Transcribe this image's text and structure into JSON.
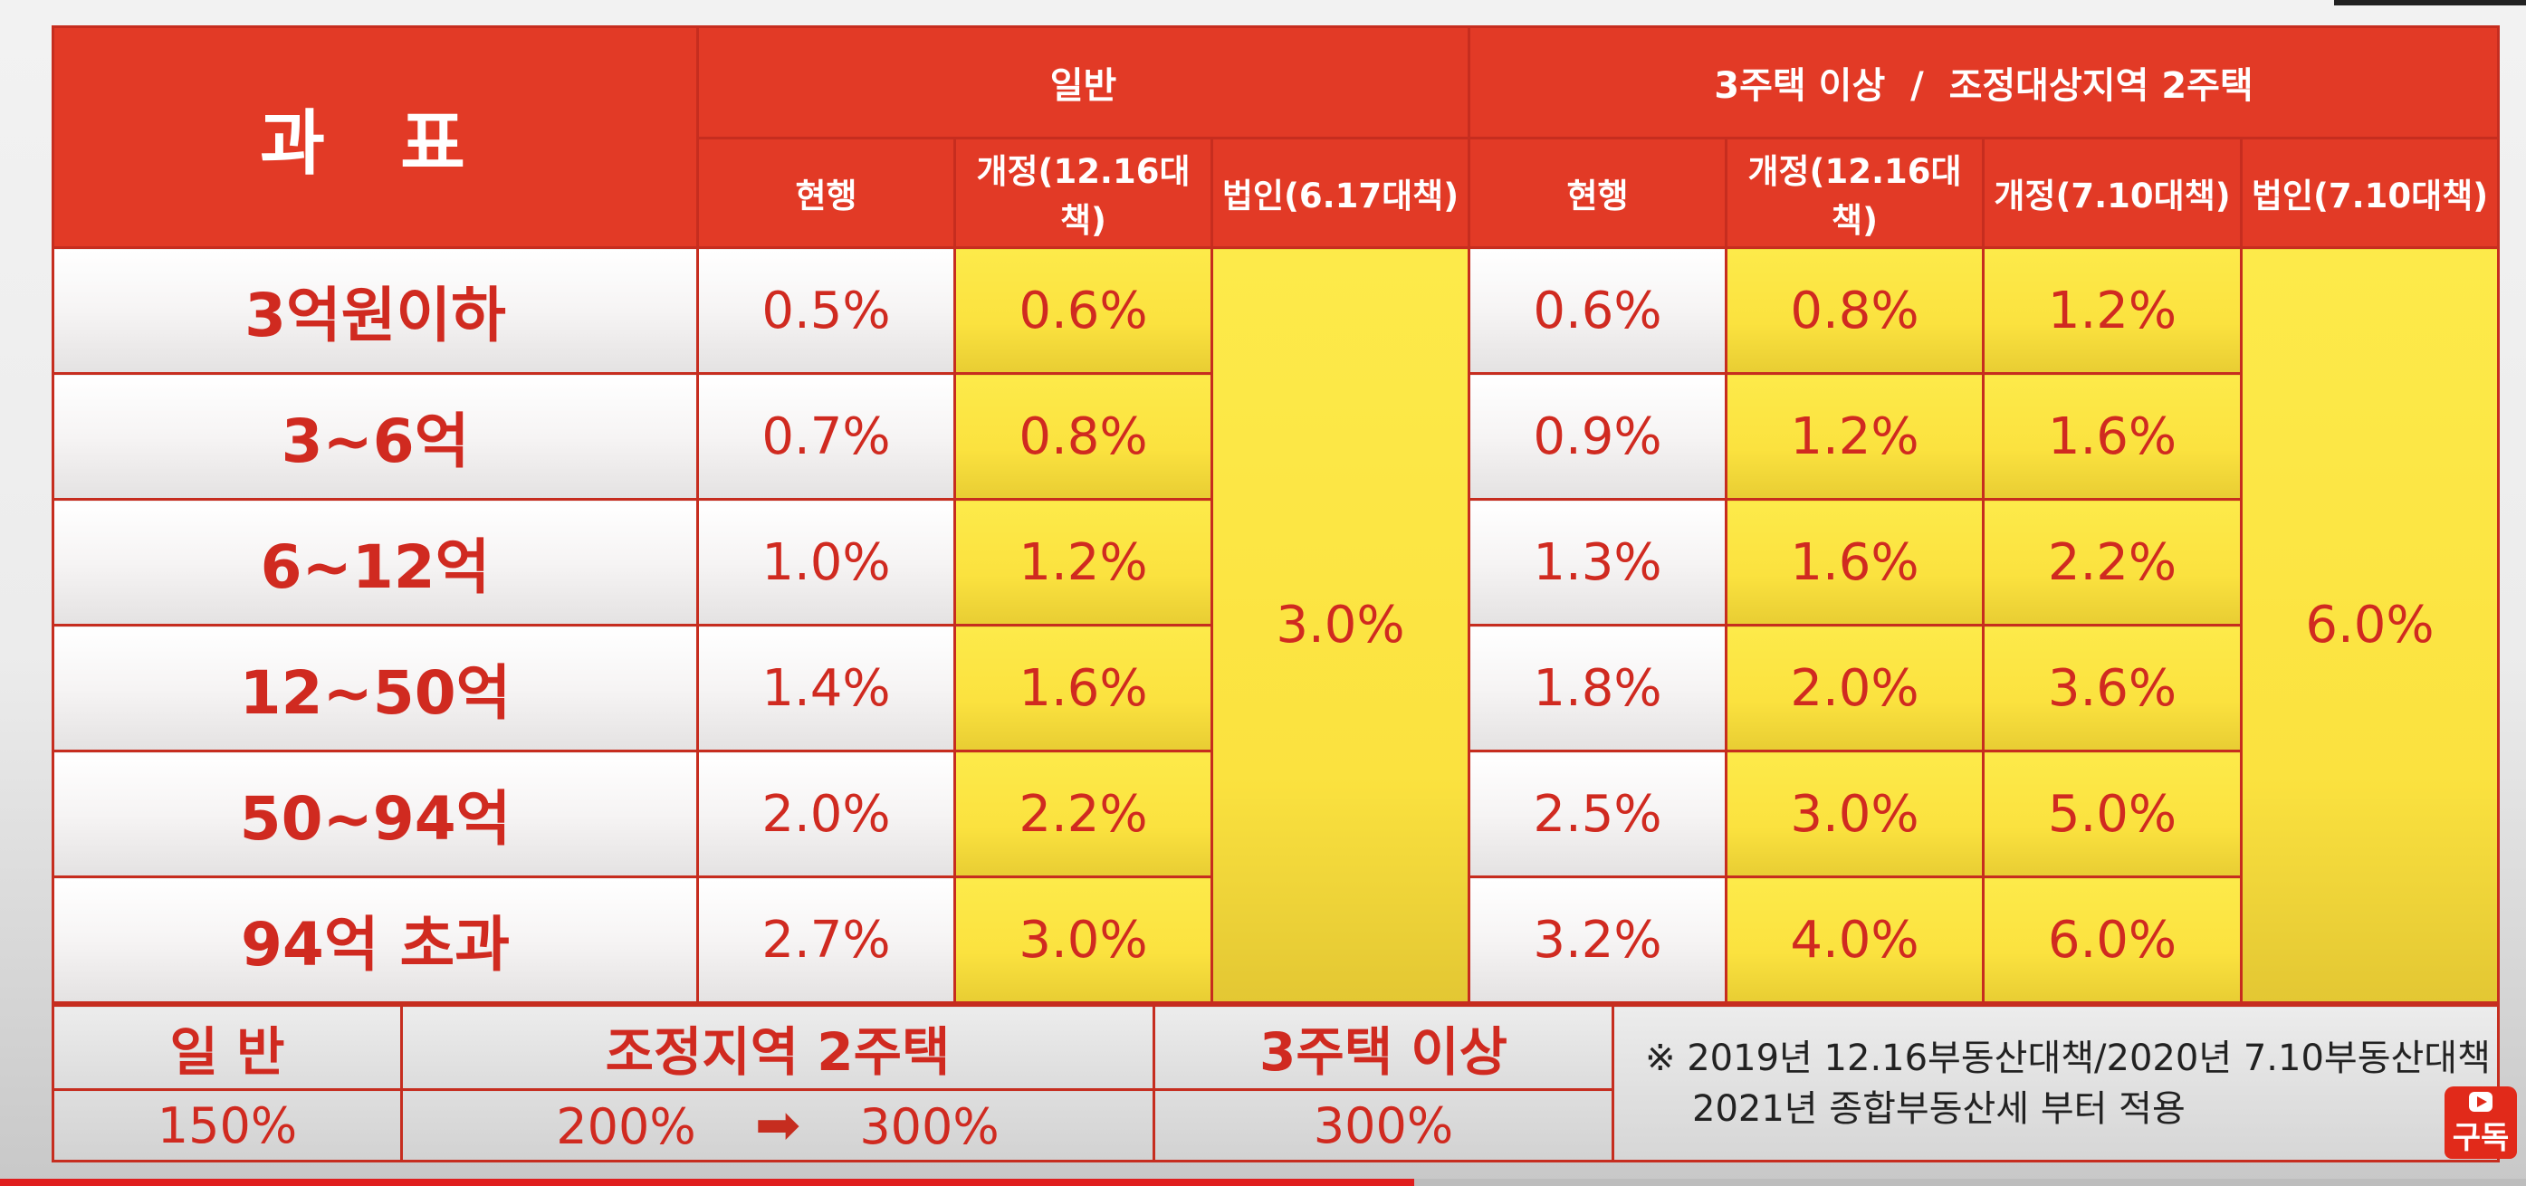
{
  "header": {
    "corner": "과 표",
    "group_general": "일반",
    "group_multi": "3주택 이상  /  조정대상지역 2주택",
    "sub_general": [
      "현행",
      "개정(12.16대책)",
      "법인(6.17대책)"
    ],
    "sub_multi": [
      "현행",
      "개정(12.16대책)",
      "개정(7.10대책)",
      "법인(7.10대책)"
    ]
  },
  "rows": [
    {
      "label": "3억원이하",
      "g_cur": "0.5%",
      "g_rev": "0.6%",
      "m_cur": "0.6%",
      "m_rev1216": "0.8%",
      "m_rev710": "1.2%"
    },
    {
      "label": "3~6억",
      "g_cur": "0.7%",
      "g_rev": "0.8%",
      "m_cur": "0.9%",
      "m_rev1216": "1.2%",
      "m_rev710": "1.6%"
    },
    {
      "label": "6~12억",
      "g_cur": "1.0%",
      "g_rev": "1.2%",
      "m_cur": "1.3%",
      "m_rev1216": "1.6%",
      "m_rev710": "2.2%"
    },
    {
      "label": "12~50억",
      "g_cur": "1.4%",
      "g_rev": "1.6%",
      "m_cur": "1.8%",
      "m_rev1216": "2.0%",
      "m_rev710": "3.6%"
    },
    {
      "label": "50~94억",
      "g_cur": "2.0%",
      "g_rev": "2.2%",
      "m_cur": "2.5%",
      "m_rev1216": "3.0%",
      "m_rev710": "5.0%"
    },
    {
      "label": "94억 초과",
      "g_cur": "2.7%",
      "g_rev": "3.0%",
      "m_cur": "3.2%",
      "m_rev1216": "4.0%",
      "m_rev710": "6.0%"
    }
  ],
  "corp_general": "3.0%",
  "corp_multi": "6.0%",
  "footer": {
    "h_general": "일 반",
    "h_adjust": "조정지역 2주택",
    "h_three": "3주택 이상",
    "v_general": "150%",
    "v_adjust_from": "200%",
    "v_adjust_to": "300%",
    "v_three": "300%",
    "note_line1": "※ 2019년 12.16부동산대책/2020년 7.10부동산대책",
    "note_line2": "2021년 종합부동산세 부터 적용"
  },
  "player": {
    "subscribe_label": "구독",
    "progress": 0.56,
    "colors": {
      "accent": "#e01e1e"
    }
  },
  "icons": {
    "arrow": "right-arrow-icon",
    "youtube": "youtube-icon"
  }
}
